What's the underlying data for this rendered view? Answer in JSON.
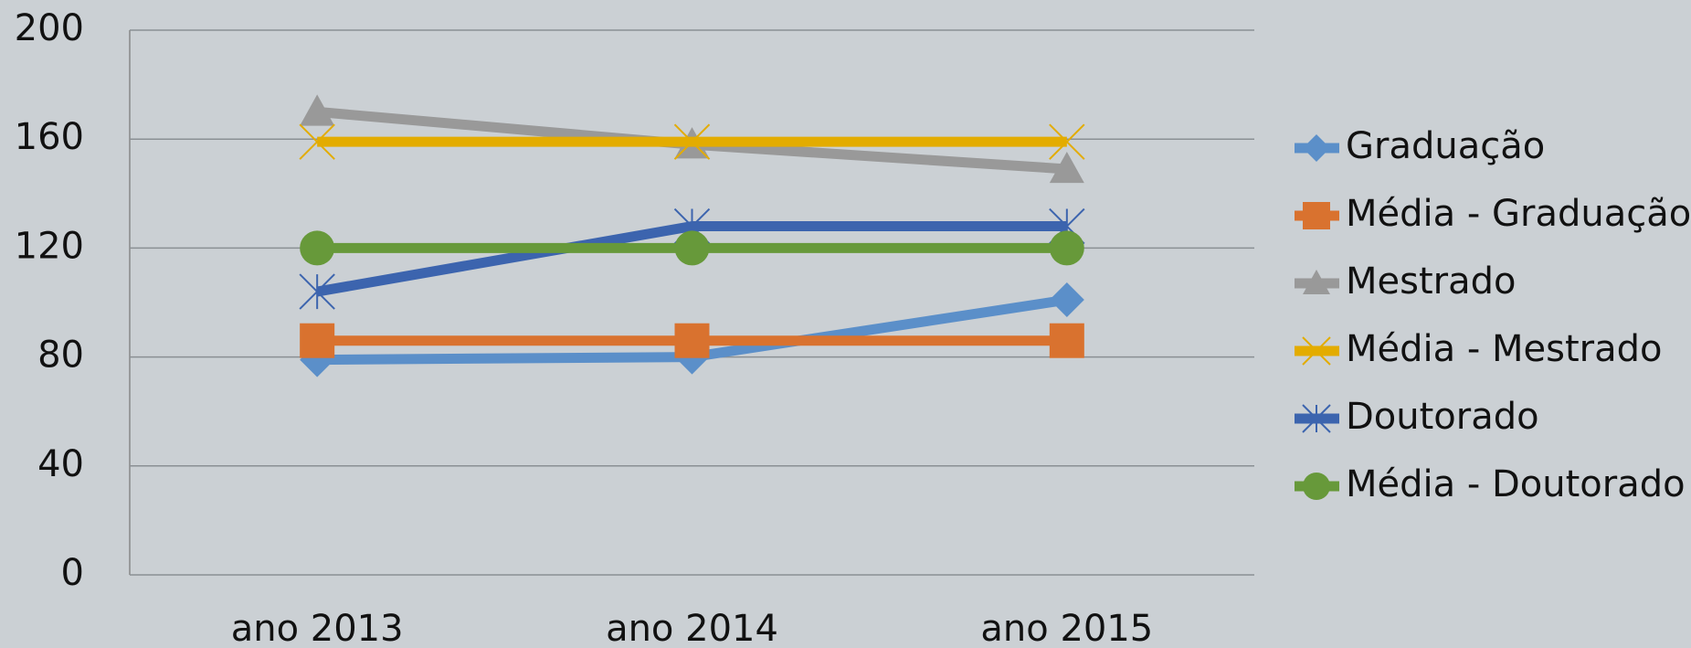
{
  "chart_data": {
    "type": "line",
    "categories": [
      "ano 2013",
      "ano 2014",
      "ano 2015"
    ],
    "series": [
      {
        "name": "Graduação",
        "color": "#5b8fc9",
        "marker": "diamond",
        "values": [
          79,
          80,
          101
        ]
      },
      {
        "name": "Média - Graduação",
        "color": "#d9722f",
        "marker": "square",
        "values": [
          86,
          86,
          86
        ]
      },
      {
        "name": "Mestrado",
        "color": "#999999",
        "marker": "triangle",
        "values": [
          170,
          158,
          149
        ]
      },
      {
        "name": "Média - Mestrado",
        "color": "#e3ac00",
        "marker": "x",
        "values": [
          159,
          159,
          159
        ]
      },
      {
        "name": "Doutorado",
        "color": "#3c64ae",
        "marker": "star",
        "values": [
          104,
          128,
          128
        ]
      },
      {
        "name": "Média - Doutorado",
        "color": "#67993a",
        "marker": "circle",
        "values": [
          120,
          120,
          120
        ]
      }
    ],
    "ylim": [
      0,
      200
    ],
    "yticks": [
      0,
      40,
      80,
      120,
      160,
      200
    ],
    "grid": true,
    "legend": "right"
  }
}
